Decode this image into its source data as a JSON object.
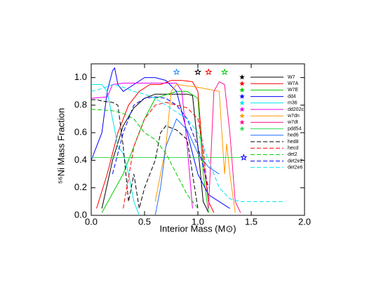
{
  "chart_data": {
    "type": "line",
    "xlabel": "Interior Mass (M⊙)",
    "ylabel": "⁵⁶Ni Mass Fraction",
    "xlim": [
      0,
      2
    ],
    "ylim": [
      0,
      1.1
    ],
    "xticks": [
      {
        "value": 0,
        "label": "0.0"
      },
      {
        "value": 0.5,
        "label": "0.5"
      },
      {
        "value": 1,
        "label": "1.0"
      },
      {
        "value": 1.5,
        "label": "1.5"
      },
      {
        "value": 2,
        "label": "2.0"
      }
    ],
    "yticks": [
      {
        "value": 0,
        "label": "0.0"
      },
      {
        "value": 0.2,
        "label": "0.2"
      },
      {
        "value": 0.4,
        "label": "0.4"
      },
      {
        "value": 0.6,
        "label": "0.6"
      },
      {
        "value": 0.8,
        "label": "0.8"
      },
      {
        "value": 1,
        "label": "1.0"
      }
    ],
    "series": [
      {
        "name": "W7",
        "color": "#000000",
        "dash": false,
        "x": [
          0.1,
          0.2,
          0.3,
          0.4,
          0.5,
          0.6,
          0.7,
          0.8,
          0.9,
          0.95,
          1.0,
          1.05,
          1.1
        ],
        "values": [
          0.05,
          0.4,
          0.65,
          0.78,
          0.85,
          0.88,
          0.88,
          0.88,
          0.88,
          0.87,
          0.5,
          0.1,
          0.02
        ]
      },
      {
        "name": "W7A",
        "color": "#ff0000",
        "dash": false,
        "x": [
          0.05,
          0.15,
          0.25,
          0.35,
          0.45,
          0.55,
          0.65,
          0.75,
          0.85,
          0.95,
          1.0,
          1.05,
          1.1,
          1.15
        ],
        "values": [
          0.05,
          0.3,
          0.6,
          0.8,
          0.9,
          0.95,
          0.95,
          0.98,
          0.98,
          0.97,
          0.9,
          0.4,
          0.1,
          0.02
        ]
      },
      {
        "name": "W7E",
        "color": "#00cc00",
        "dash": false,
        "x": [
          0.1,
          0.3,
          0.5,
          0.6,
          0.8,
          0.9,
          1.0,
          1.05,
          1.1
        ],
        "values": [
          0.02,
          0.3,
          0.7,
          0.85,
          0.9,
          0.9,
          0.85,
          0.3,
          0.02
        ]
      },
      {
        "name": "dd4",
        "color": "#0000ff",
        "dash": false,
        "x": [
          0,
          0.1,
          0.15,
          0.2,
          0.22,
          0.25,
          0.3,
          0.4,
          0.5,
          0.6,
          0.7,
          0.8,
          0.9,
          1.0,
          1.1,
          1.2,
          1.3
        ],
        "values": [
          0.4,
          0.6,
          0.9,
          1.05,
          1.07,
          0.95,
          0.9,
          0.95,
          1.0,
          1.0,
          0.98,
          0.9,
          0.6,
          0.3,
          0.15,
          0.1,
          0.05
        ]
      },
      {
        "name": "m36",
        "color": "#00e5ee",
        "dash": false,
        "x": [
          0,
          0.1,
          0.15,
          0.2,
          0.25,
          0.3,
          0.35,
          0.4,
          0.45
        ],
        "values": [
          0.95,
          0.95,
          0.9,
          0.7,
          0.5,
          0.45,
          0.3,
          0.1,
          0.0
        ]
      },
      {
        "name": "dd202c",
        "color": "#ee00ee",
        "dash": false,
        "x": [
          0,
          0.15,
          0.2,
          0.3,
          0.5,
          0.7,
          0.8,
          0.85,
          0.9,
          0.95
        ],
        "values": [
          0.85,
          0.86,
          0.95,
          0.96,
          0.96,
          0.96,
          0.96,
          0.9,
          0.5,
          0.05
        ]
      },
      {
        "name": "w7dn",
        "color": "#ff9900",
        "dash": false,
        "x": [
          0.6,
          0.7,
          0.75,
          0.8,
          1.0,
          1.2,
          1.25,
          1.27,
          1.3,
          1.35
        ],
        "values": [
          0.1,
          0.5,
          0.9,
          0.95,
          0.93,
          0.9,
          0.3,
          0.52,
          0.3,
          0.02
        ]
      },
      {
        "name": "w7dt",
        "color": "#ff1493",
        "dash": false,
        "x": [
          1.1,
          1.15,
          1.2,
          1.25,
          1.3,
          1.35,
          1.4
        ],
        "values": [
          0.05,
          0.9,
          0.97,
          0.95,
          0.6,
          0.1,
          0.02
        ]
      },
      {
        "name": "pdd54",
        "color": "#33dd55",
        "dash": false,
        "x": [
          0,
          0.2,
          0.4,
          0.6,
          0.8,
          1.0,
          1.2,
          1.4
        ],
        "values": [
          0.42,
          0.42,
          0.42,
          0.42,
          0.42,
          0.42,
          0.42,
          0.42
        ]
      },
      {
        "name": "hed6",
        "color": "#1e6fff",
        "dash": false,
        "x": [
          0.6,
          0.65,
          0.7,
          0.8,
          0.9,
          1.0,
          1.1,
          1.2
        ],
        "values": [
          0,
          0.2,
          0.5,
          0.7,
          0.62,
          0.45,
          0.35,
          0.3
        ]
      },
      {
        "name": "hed8",
        "color": "#000000",
        "dash": true,
        "x": [
          0,
          0.05,
          0.1,
          0.2,
          0.25,
          0.3,
          0.35,
          0.4,
          0.45,
          0.5,
          0.6,
          0.65,
          0.7,
          0.8,
          0.9,
          0.95,
          1.0
        ],
        "values": [
          0.84,
          0.84,
          0.83,
          0.82,
          0.8,
          0.5,
          0.1,
          0.3,
          0.05,
          0.2,
          0.4,
          0.6,
          0.65,
          0.62,
          0.55,
          0.3,
          0.05
        ]
      },
      {
        "name": "hecd",
        "color": "#ff0000",
        "dash": true,
        "x": [
          0.3,
          0.4,
          0.5,
          0.6,
          0.7,
          0.8,
          0.9,
          1.0,
          1.05,
          1.1
        ],
        "values": [
          0.05,
          0.5,
          0.7,
          0.8,
          0.82,
          0.8,
          0.78,
          0.7,
          0.5,
          0.1
        ]
      },
      {
        "name": "det2",
        "color": "#00cc00",
        "dash": true,
        "x": [
          0,
          0.2,
          0.3,
          0.4,
          0.5,
          0.6,
          0.7,
          0.8,
          0.9,
          1.0
        ],
        "values": [
          0.77,
          0.76,
          0.74,
          0.7,
          0.6,
          0.55,
          0.45,
          0.3,
          0.15,
          0.05
        ]
      },
      {
        "name": "det2e2",
        "color": "#0000ff",
        "dash": true,
        "x": [
          0.2,
          0.3,
          0.4,
          0.5,
          0.6,
          0.7,
          0.8,
          0.9,
          1.0,
          1.1
        ],
        "values": [
          0.3,
          0.6,
          0.8,
          0.85,
          0.86,
          0.85,
          0.8,
          0.7,
          0.5,
          0.2
        ]
      },
      {
        "name": "det2e6",
        "color": "#00e5ee",
        "dash": true,
        "x": [
          0,
          0.1,
          0.2,
          0.3,
          0.4,
          0.5,
          0.6,
          0.7,
          0.8,
          0.9,
          1.0,
          1.1,
          1.2,
          1.3,
          1.4,
          1.5,
          1.6,
          1.8
        ],
        "values": [
          0.9,
          0.92,
          0.95,
          0.93,
          0.9,
          0.88,
          0.85,
          0.8,
          0.75,
          0.7,
          0.6,
          0.4,
          0.2,
          0.12,
          0.1,
          0.1,
          0.1,
          0.1
        ]
      }
    ],
    "stars": [
      {
        "x": 0.8,
        "y": 1.04,
        "color": "#1e90ff"
      },
      {
        "x": 1.0,
        "y": 1.04,
        "color": "#000000"
      },
      {
        "x": 1.1,
        "y": 1.04,
        "color": "#ff0000"
      },
      {
        "x": 1.25,
        "y": 1.04,
        "color": "#00cc00"
      },
      {
        "x": 1.43,
        "y": 0.42,
        "color": "#0000ff"
      }
    ]
  }
}
